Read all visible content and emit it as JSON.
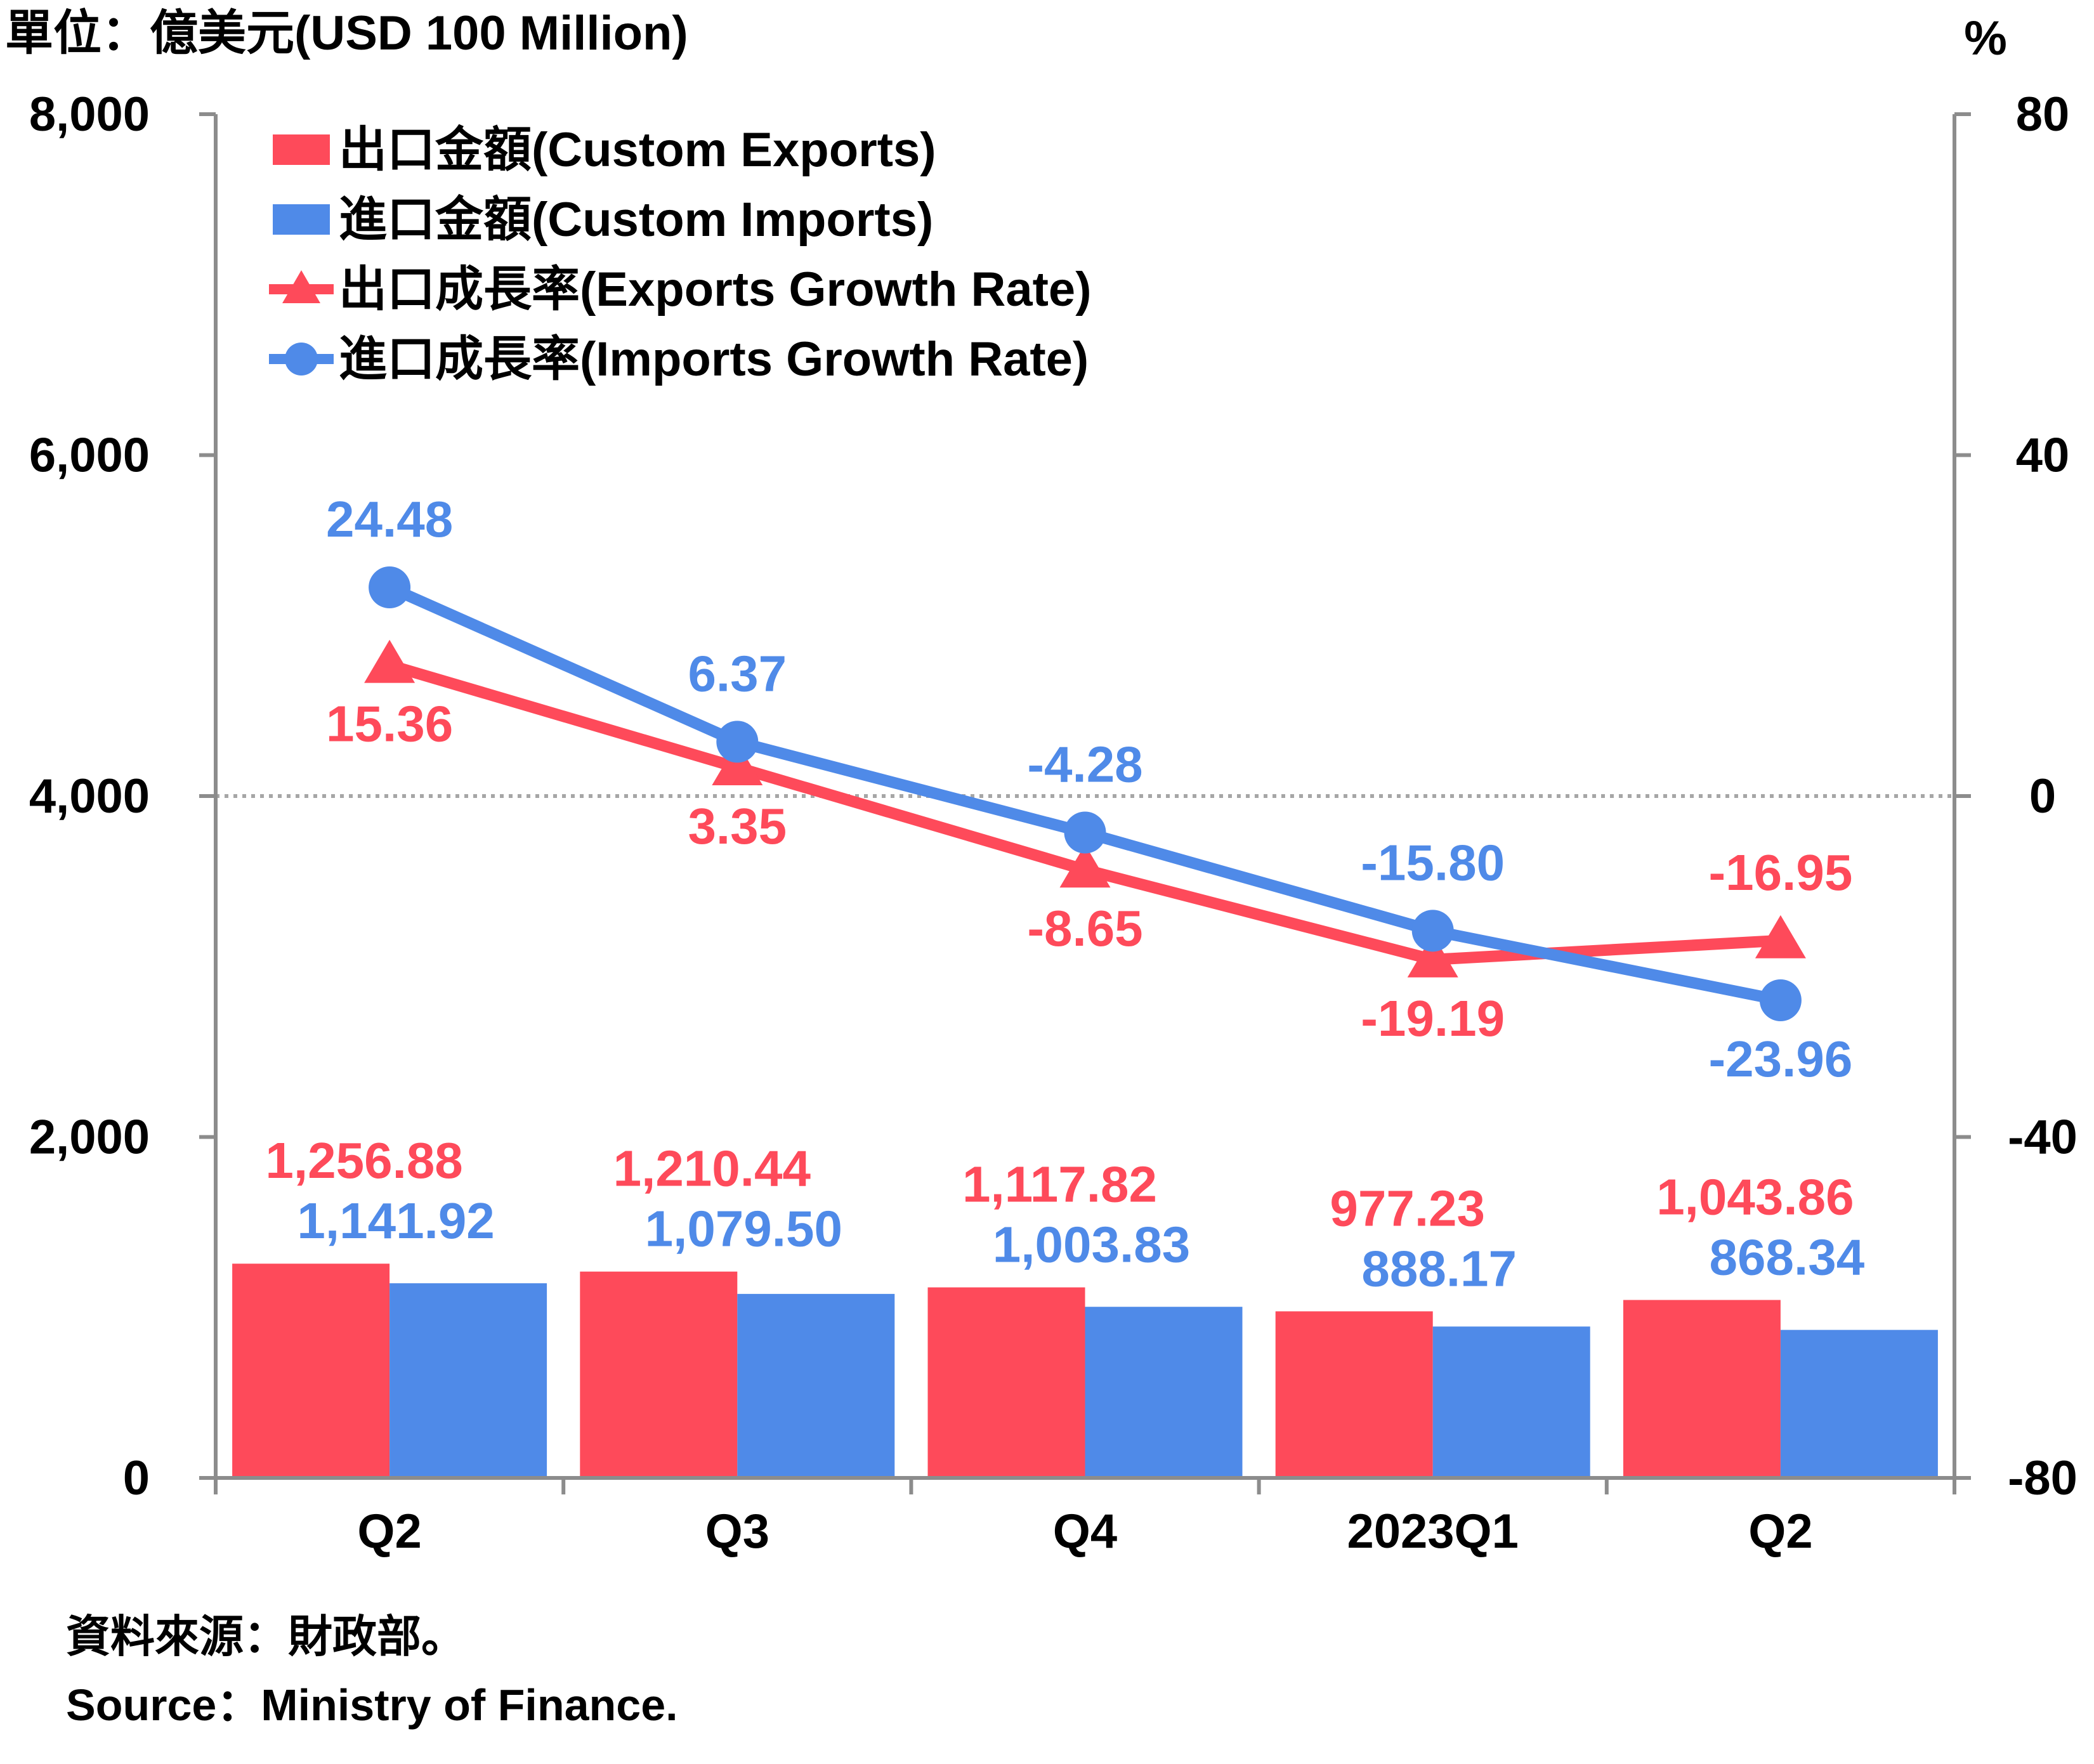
{
  "colors": {
    "exports": "#fe4a5a",
    "imports": "#4f8ae8",
    "axis": "#8c8c8c",
    "zero_line": "#a6a6a6",
    "text": "#000000"
  },
  "texts": {
    "unit_left": "單位：億美元(USD 100 Million)",
    "unit_right": "%",
    "source_zh": "資料來源：財政部。",
    "source_en": "Source：Ministry of Finance."
  },
  "chart_data": {
    "type": "bar+line",
    "categories": [
      "Q2",
      "Q3",
      "Q4",
      "2023Q1",
      "Q2"
    ],
    "left_axis": {
      "min": 0,
      "max": 8000,
      "ticks": [
        0,
        2000,
        4000,
        6000,
        8000
      ],
      "tick_labels": [
        "0",
        "2,000",
        "4,000",
        "6,000",
        "8,000"
      ]
    },
    "right_axis": {
      "min": -80,
      "max": 80,
      "ticks": [
        -80,
        -40,
        0,
        40,
        80
      ],
      "tick_labels": [
        "-80",
        "-40",
        "0",
        "40",
        "80"
      ]
    },
    "zero_reference_line": {
      "axis": "right",
      "value": 0,
      "style": "dotted"
    },
    "legend_position": "top-left",
    "series": [
      {
        "name": "出口金額(Custom Exports)",
        "kind": "bar",
        "axis": "left",
        "color": "#fe4a5a",
        "values": [
          1256.88,
          1210.44,
          1117.82,
          977.23,
          1043.86
        ],
        "labels": [
          "1,256.88",
          "1,210.44",
          "1,117.82",
          "977.23",
          "1,043.86"
        ]
      },
      {
        "name": "進口金額(Custom Imports)",
        "kind": "bar",
        "axis": "left",
        "color": "#4f8ae8",
        "values": [
          1141.92,
          1079.5,
          1003.83,
          888.17,
          868.34
        ],
        "labels": [
          "1,141.92",
          "1,079.50",
          "1,003.83",
          "888.17",
          "868.34"
        ]
      },
      {
        "name": "出口成長率(Exports Growth Rate)",
        "kind": "line",
        "marker": "triangle",
        "axis": "right",
        "color": "#fe4a5a",
        "values": [
          15.36,
          3.35,
          -8.65,
          -19.19,
          -16.95
        ],
        "labels": [
          "15.36",
          "3.35",
          "-8.65",
          "-19.19",
          "-16.95"
        ]
      },
      {
        "name": "進口成長率(Imports Growth Rate)",
        "kind": "line",
        "marker": "circle",
        "axis": "right",
        "color": "#4f8ae8",
        "values": [
          24.48,
          6.37,
          -4.28,
          -15.8,
          -23.96
        ],
        "labels": [
          "24.48",
          "6.37",
          "-4.28",
          "-15.80",
          "-23.96"
        ]
      }
    ]
  }
}
